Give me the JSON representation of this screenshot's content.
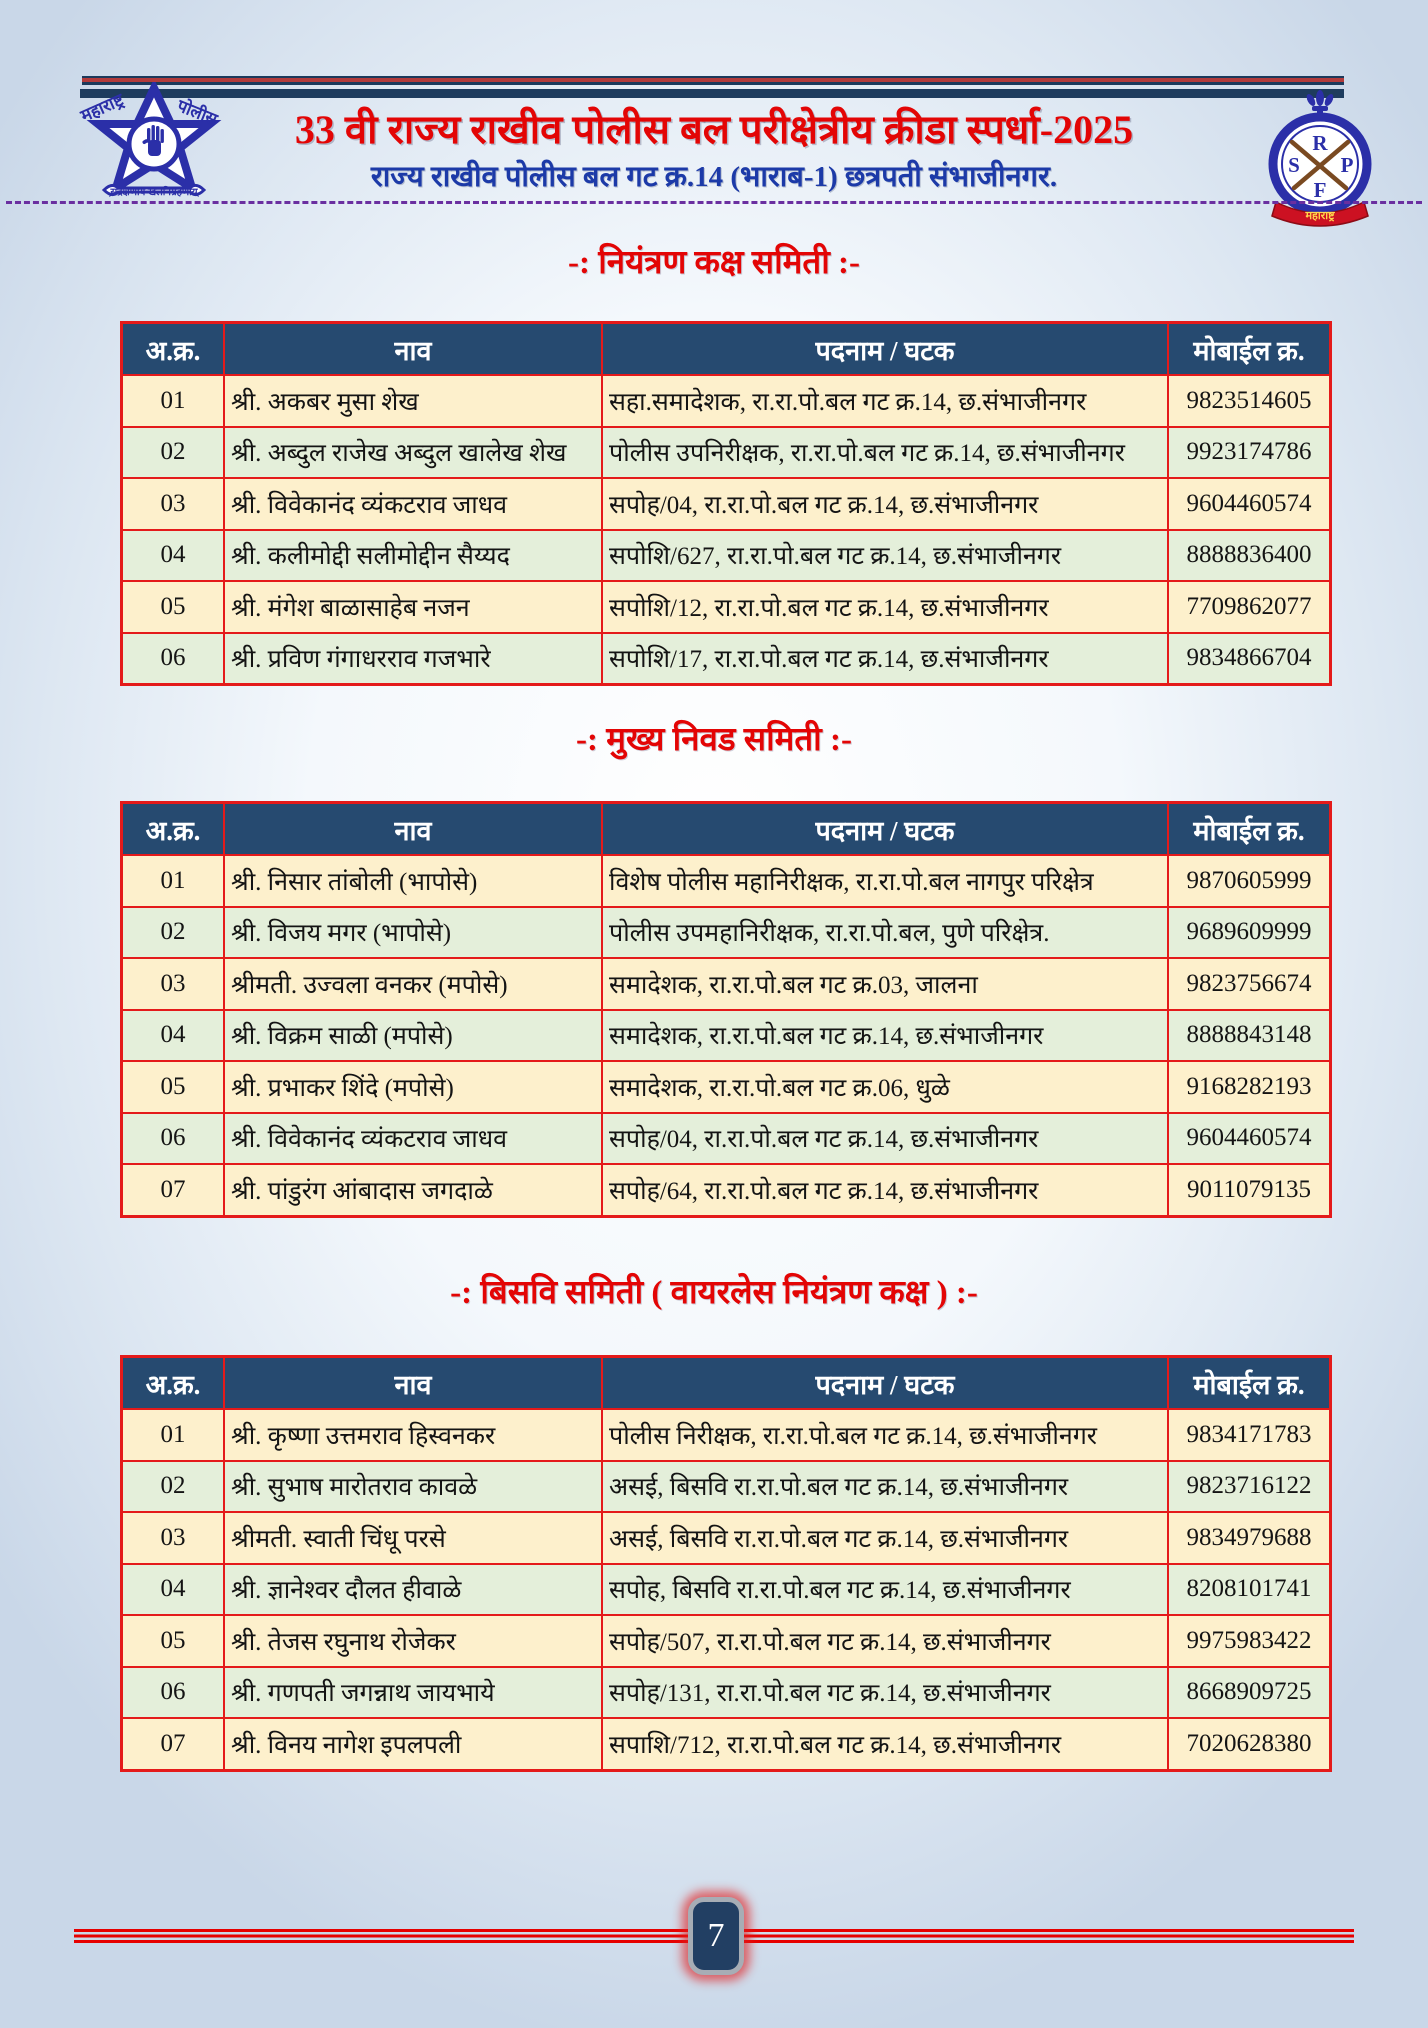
{
  "page": {
    "number": "7"
  },
  "header": {
    "title": "33 वी राज्य राखीव पोलीस बल परीक्षेत्रीय क्रीडा स्पर्धा-2025",
    "subtitle": "राज्य राखीव पोलीस बल गट क्र.14 (भाराब-1) छत्रपती संभाजीनगर.",
    "left_logo": {
      "label_left": "महाराष्ट्र",
      "label_right": "पोलीस",
      "motto": "सद्रक्षणाय खलनिग्रहणाय"
    },
    "right_logo": {
      "letter_top": "R",
      "letter_left": "S",
      "letter_right": "P",
      "letter_bottom": "F",
      "banner": "महाराष्ट्र"
    }
  },
  "table_columns": [
    "अ.क्र.",
    "नाव",
    "पदनाम / घटक",
    "मोबाईल क्र."
  ],
  "sections": [
    {
      "title": "-: नियंत्रण कक्ष समिती :-",
      "rows": [
        [
          "01",
          "श्री. अकबर मुसा शेख",
          "सहा.समादेशक, रा.रा.पो.बल गट क्र.14, छ.संभाजीनगर",
          "9823514605"
        ],
        [
          "02",
          "श्री. अब्दुल राजेख अब्दुल खालेख शेख",
          "पोलीस उपनिरीक्षक, रा.रा.पो.बल गट क्र.14, छ.संभाजीनगर",
          "9923174786"
        ],
        [
          "03",
          "श्री. विवेकानंद व्यंकटराव जाधव",
          "सपोह/04, रा.रा.पो.बल गट क्र.14, छ.संभाजीनगर",
          "9604460574"
        ],
        [
          "04",
          "श्री. कलीमोद्दी सलीमोद्दीन सैय्यद",
          "सपोशि/627, रा.रा.पो.बल गट क्र.14, छ.संभाजीनगर",
          "8888836400"
        ],
        [
          "05",
          "श्री. मंगेश बाळासाहेब नजन",
          "सपोशि/12, रा.रा.पो.बल गट क्र.14, छ.संभाजीनगर",
          "7709862077"
        ],
        [
          "06",
          "श्री. प्रविण गंगाधरराव गजभारे",
          "सपोशि/17, रा.रा.पो.बल गट क्र.14, छ.संभाजीनगर",
          "9834866704"
        ]
      ]
    },
    {
      "title": "-: मुख्य निवड समिती :-",
      "rows": [
        [
          "01",
          "श्री. निसार तांबोली (भापोसे)",
          "विशेष पोलीस महानिरीक्षक, रा.रा.पो.बल नागपुर परिक्षेत्र",
          "9870605999"
        ],
        [
          "02",
          "श्री. विजय मगर (भापोसे)",
          "पोलीस उपमहानिरीक्षक, रा.रा.पो.बल, पुणे परिक्षेत्र.",
          "9689609999"
        ],
        [
          "03",
          "श्रीमती. उज्वला वनकर (मपोसे)",
          "समादेशक, रा.रा.पो.बल गट क्र.03, जालना",
          "9823756674"
        ],
        [
          "04",
          "श्री. विक्रम साळी (मपोसे)",
          "समादेशक, रा.रा.पो.बल गट क्र.14, छ.संभाजीनगर",
          "8888843148"
        ],
        [
          "05",
          "श्री. प्रभाकर शिंदे (मपोसे)",
          "समादेशक, रा.रा.पो.बल गट क्र.06, धुळे",
          "9168282193"
        ],
        [
          "06",
          "श्री. विवेकानंद व्यंकटराव जाधव",
          "सपोह/04, रा.रा.पो.बल गट क्र.14, छ.संभाजीनगर",
          "9604460574"
        ],
        [
          "07",
          "श्री. पांडुरंग आंबादास जगदाळे",
          "सपोह/64, रा.रा.पो.बल गट क्र.14, छ.संभाजीनगर",
          "9011079135"
        ]
      ]
    },
    {
      "title": "-: बिसवि समिती ( वायरलेस नियंत्रण कक्ष ) :-",
      "rows": [
        [
          "01",
          "श्री. कृष्णा उत्तमराव हिस्वनकर",
          "पोलीस निरीक्षक, रा.रा.पो.बल गट क्र.14, छ.संभाजीनगर",
          "9834171783"
        ],
        [
          "02",
          "श्री. सुभाष मारोतराव कावळे",
          "असई, बिसवि रा.रा.पो.बल गट क्र.14, छ.संभाजीनगर",
          "9823716122"
        ],
        [
          "03",
          "श्रीमती. स्वाती चिंधू परसे",
          "असई, बिसवि रा.रा.पो.बल गट क्र.14, छ.संभाजीनगर",
          "9834979688"
        ],
        [
          "04",
          "श्री. ज्ञानेश्वर दौलत हीवाळे",
          "सपोह, बिसवि रा.रा.पो.बल गट क्र.14, छ.संभाजीनगर",
          "8208101741"
        ],
        [
          "05",
          "श्री. तेजस रघुनाथ रोजेकर",
          "सपोह/507, रा.रा.पो.बल गट क्र.14, छ.संभाजीनगर",
          "9975983422"
        ],
        [
          "06",
          "श्री. गणपती जगन्नाथ जायभाये",
          "सपोह/131, रा.रा.पो.बल गट क्र.14, छ.संभाजीनगर",
          "8668909725"
        ],
        [
          "07",
          "श्री. विनय नागेश इपलपली",
          "सपाशि/712, रा.रा.पो.बल गट क्र.14, छ.संभाजीनगर",
          "7020628380"
        ]
      ]
    }
  ],
  "colors": {
    "accent_red": "#e30505",
    "table_border_red": "#e41a1a",
    "header_navy": "#264a70",
    "row_cream": "#fdf0cc",
    "row_green": "#e4efda",
    "subtitle_blue": "#1c3aa8",
    "dash_purple": "#6a2fa0",
    "bar_navy": "#1e3c5e"
  }
}
